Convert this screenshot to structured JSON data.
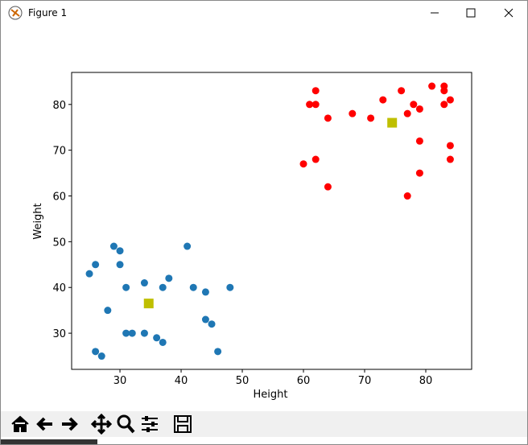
{
  "window_title": "Figure 1",
  "chart_data": {
    "type": "scatter",
    "xlabel": "Height",
    "ylabel": "Weight",
    "xlim": [
      22.1,
      87.5
    ],
    "ylim": [
      22.1,
      87.0
    ],
    "xticks": [
      30,
      40,
      50,
      60,
      70,
      80
    ],
    "yticks": [
      30,
      40,
      50,
      60,
      70,
      80
    ],
    "series": [
      {
        "color": "#1f77b4",
        "marker": "circle",
        "x": [
          25,
          26,
          29,
          30,
          30,
          31,
          34,
          38,
          41,
          37,
          42,
          44,
          48,
          28,
          31,
          32,
          34,
          36,
          37,
          44,
          45,
          26,
          27,
          46
        ],
        "y": [
          43,
          45,
          49,
          48,
          45,
          40,
          41,
          42,
          49,
          40,
          40,
          39,
          40,
          35,
          30,
          30,
          30,
          29,
          28,
          33,
          32,
          26,
          25,
          26
        ]
      },
      {
        "color": "#ff0000",
        "marker": "circle",
        "x": [
          61,
          62,
          62,
          64,
          68,
          71,
          73,
          76,
          77,
          78,
          79,
          81,
          83,
          83,
          83,
          84,
          79,
          84,
          84,
          79,
          77,
          60,
          62,
          64
        ],
        "y": [
          80,
          80,
          83,
          77,
          78,
          77,
          81,
          83,
          78,
          80,
          79,
          84,
          84,
          83,
          80,
          81,
          72,
          71,
          68,
          65,
          60,
          67,
          68,
          62
        ]
      },
      {
        "color": "#bfbf00",
        "marker": "square",
        "x": [
          34.7,
          74.5
        ],
        "y": [
          36.5,
          76.0
        ]
      }
    ]
  }
}
